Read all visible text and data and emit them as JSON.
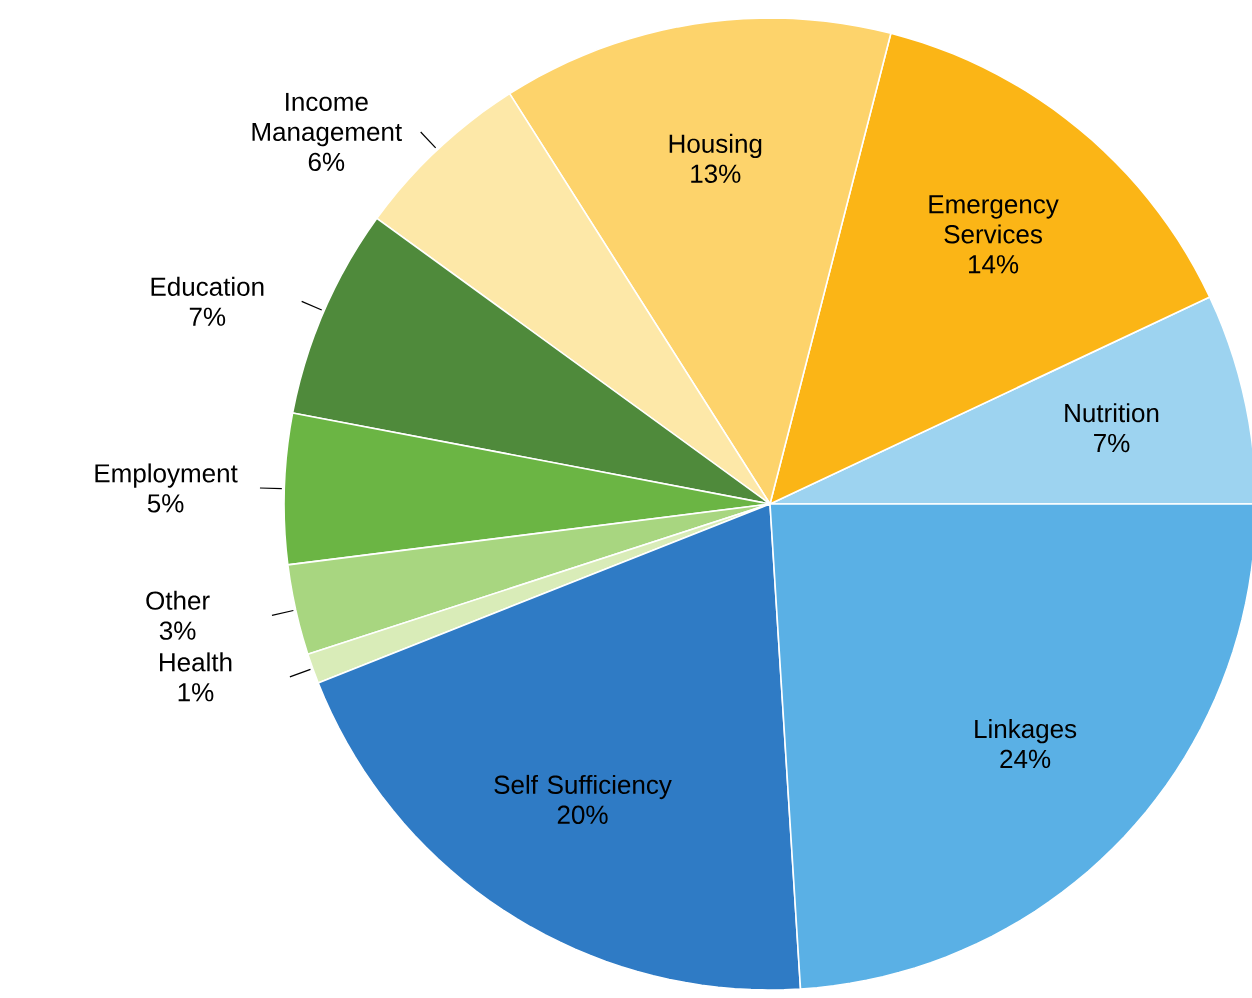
{
  "chart_data": {
    "type": "pie",
    "categories": [
      "Nutrition",
      "Emergency Services",
      "Housing",
      "Income Management",
      "Education",
      "Employment",
      "Other",
      "Health",
      "Self Sufficiency",
      "Linkages"
    ],
    "values": [
      7,
      14,
      13,
      6,
      7,
      5,
      3,
      1,
      20,
      24
    ],
    "colors": [
      "#9dd3f0",
      "#fbb516",
      "#fdd36b",
      "#fde8a8",
      "#4f8a3b",
      "#6bb544",
      "#a8d680",
      "#d9ecb8",
      "#2f7bc5",
      "#5ab0e5"
    ],
    "value_labels": [
      "7%",
      "14%",
      "13%",
      "6%",
      "7%",
      "5%",
      "3%",
      "1%",
      "20%",
      "24%"
    ]
  }
}
